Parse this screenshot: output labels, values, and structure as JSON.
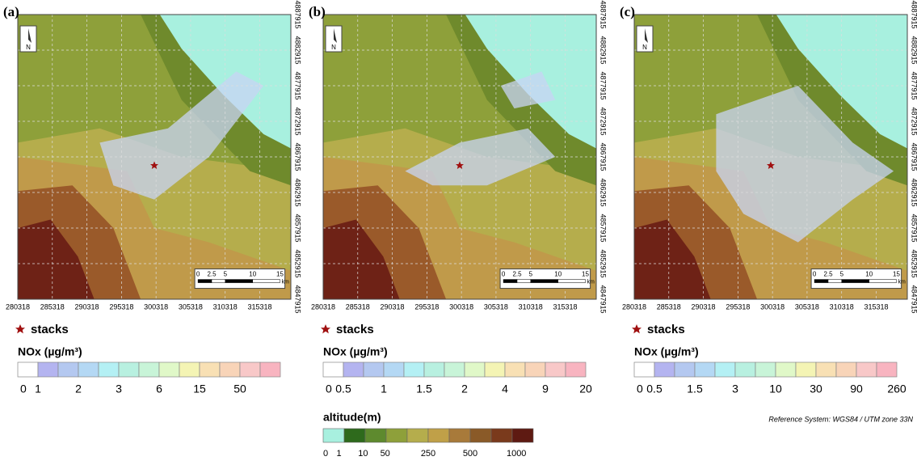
{
  "panels": [
    {
      "label": "(a)",
      "nox_labels": [
        "0",
        "1",
        "2",
        "3",
        "6",
        "15",
        "50"
      ]
    },
    {
      "label": "(b)",
      "nox_labels": [
        "0",
        "0.5",
        "1",
        "1.5",
        "2",
        "4",
        "9",
        "20"
      ]
    },
    {
      "label": "(c)",
      "nox_labels": [
        "0",
        "0.5",
        "1.5",
        "3",
        "10",
        "30",
        "90",
        "260"
      ]
    }
  ],
  "x_ticks": [
    280318,
    285318,
    290318,
    295318,
    300318,
    305318,
    310318,
    315318
  ],
  "y_ticks": [
    4847915,
    4852915,
    4857915,
    4862915,
    4867915,
    4872915,
    4877915,
    4882915,
    4887915
  ],
  "scale_labels": [
    "0",
    "2.5",
    "5",
    "10",
    "15"
  ],
  "scale_unit": "km",
  "north": "N",
  "stacks_label": "stacks",
  "nox_title": "NOx (µg/m³)",
  "nox_colors": [
    "#ffffff",
    "#b4b4f0",
    "#b4c8f0",
    "#b4d8f4",
    "#b4f0f4",
    "#b8f0e0",
    "#c8f4d8",
    "#e0f8c8",
    "#f4f4b4",
    "#f8e0b4",
    "#f8d4b8",
    "#f8c8c8",
    "#f8b4c0"
  ],
  "altitude": {
    "title": "altitude(m)",
    "labels": [
      "0",
      "1",
      "10",
      "50",
      "250",
      "500",
      "1000"
    ],
    "colors": [
      "#a8f0df",
      "#2e6a1c",
      "#5e8a2e",
      "#8ea03a",
      "#b5ad4c",
      "#c0a048",
      "#a87a3a",
      "#8a5a28",
      "#7a3a1c",
      "#5e1a12"
    ]
  },
  "reference": "Reference System: WGS84 / UTM zone 33N"
}
